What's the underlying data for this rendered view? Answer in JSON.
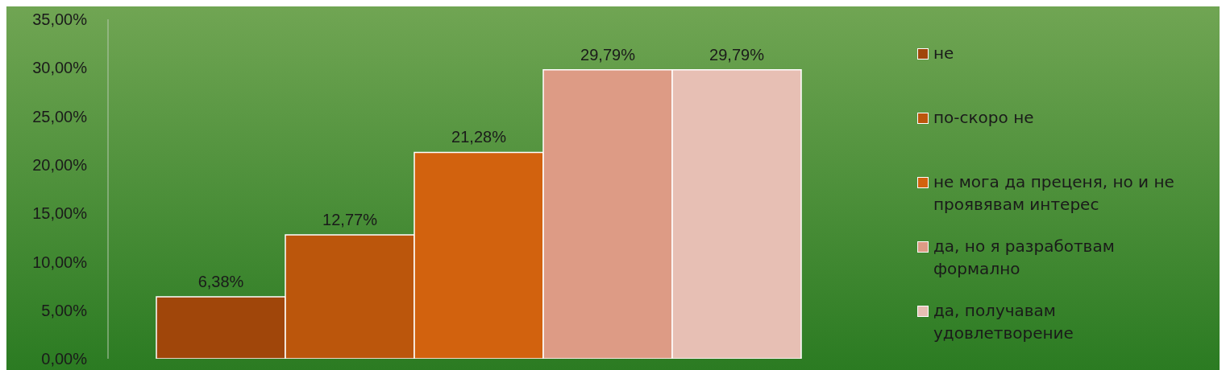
{
  "chart_data": {
    "type": "bar",
    "categories": [
      null
    ],
    "series": [
      {
        "name": "не",
        "color": "#a0460a",
        "values": [
          6.38
        ],
        "value_labels": [
          "6,38%"
        ]
      },
      {
        "name": "по-скоро не",
        "color": "#bb560c",
        "values": [
          12.77
        ],
        "value_labels": [
          "12,77%"
        ]
      },
      {
        "name": "не мога да преценя, но и не проявявам интерес",
        "color": "#d2620e",
        "values": [
          21.28
        ],
        "value_labels": [
          "21,28%"
        ]
      },
      {
        "name": "да, но я разработвам формално",
        "color": "#dd9b85",
        "values": [
          29.79
        ],
        "value_labels": [
          "29,79%"
        ]
      },
      {
        "name": "да, получавам удовлетворение",
        "color": "#e7bfb4",
        "values": [
          29.79
        ],
        "value_labels": [
          "29,79%"
        ]
      }
    ],
    "ylim": [
      0,
      35
    ],
    "yticks": [
      {
        "value": 0,
        "label": "0,00%"
      },
      {
        "value": 5,
        "label": "5,00%"
      },
      {
        "value": 10,
        "label": "10,00%"
      },
      {
        "value": 15,
        "label": "15,00%"
      },
      {
        "value": 20,
        "label": "20,00%"
      },
      {
        "value": 25,
        "label": "25,00%"
      },
      {
        "value": 30,
        "label": "30,00%"
      },
      {
        "value": 35,
        "label": "35,00%"
      }
    ],
    "tick_labels": "y",
    "grid": false,
    "legend": "right"
  }
}
